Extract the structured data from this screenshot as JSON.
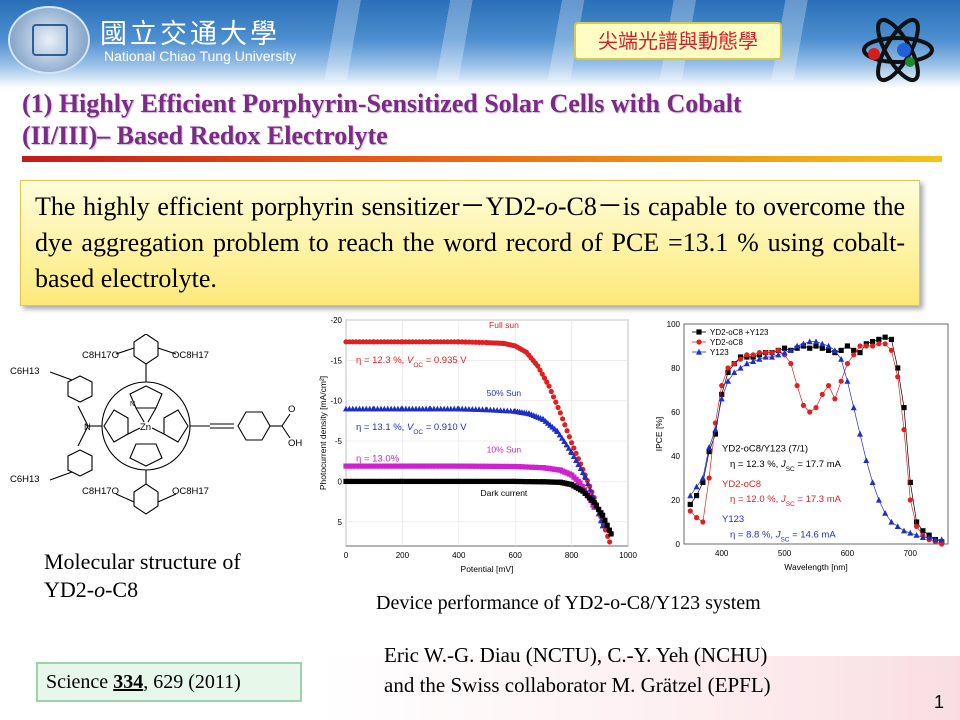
{
  "header": {
    "university_cn": "國立交通大學",
    "university_en": "National Chiao Tung University",
    "badge": "尖端光譜與動態學"
  },
  "title": {
    "line1": "(1) Highly Efficient Porphyrin-Sensitized Solar Cells with Cobalt",
    "line2": "(II/III)– Based Redox Electrolyte"
  },
  "callout": {
    "part1": "The highly efficient porphyrin sensitizer",
    "dash": "－",
    "dye_name_a": "YD2-",
    "dye_name_italic": "o",
    "dye_name_b": "-C8",
    "part2": "is capable to overcome the dye aggregation problem to reach the word record of PCE =13.1 % using cobalt-based electrolyte."
  },
  "molecule": {
    "caption_line1": "Molecular structure of",
    "caption_a": "YD2-",
    "caption_italic": "o",
    "caption_b": "-C8",
    "labels": {
      "c6h13_top": "C6H13",
      "c6h13_bottom": "C6H13",
      "oc8_tl": "C8H17O",
      "oc8_tr": "OC8H17",
      "oc8_bl": "C8H17O",
      "oc8_br": "OC8H17",
      "n": "N",
      "zn": "Zn",
      "ring_n": "N",
      "o": "O",
      "oh": "OH"
    }
  },
  "device_caption": "Device performance of YD2-o-C8/Y123 system",
  "science": {
    "journal": "Science",
    "volume": "334",
    "rest": ", 629 (2011)"
  },
  "authors": {
    "line1": "Eric W.-G. Diau (NCTU),  C.-Y. Yeh (NCHU)",
    "line2": "and the Swiss collaborator M. Grätzel (EPFL)"
  },
  "page_number": "1",
  "chart_data": [
    {
      "type": "scatter",
      "xlabel": "Potential [mV]",
      "ylabel": "Photocurrent density [mA/cm²]",
      "xlim": [
        0,
        1000
      ],
      "ylim": [
        -20,
        8
      ],
      "y_inverted": true,
      "x_ticks": [
        0,
        200,
        400,
        600,
        800,
        1000
      ],
      "y_ticks": [
        -20,
        -15,
        -10,
        -5,
        0,
        5
      ],
      "grid": true,
      "series": [
        {
          "name": "Full sun",
          "color": "#e02020",
          "marker": "circle",
          "jsc": -17.2,
          "voc": 935,
          "x": [
            0,
            100,
            200,
            300,
            400,
            500,
            560,
            600,
            640,
            680,
            720,
            760,
            800,
            840,
            880,
            920,
            935
          ],
          "y": [
            -17.3,
            -17.3,
            -17.3,
            -17.3,
            -17.3,
            -17.2,
            -17.1,
            -16.8,
            -16.0,
            -14.3,
            -11.8,
            -8.5,
            -4.8,
            -1.5,
            2.0,
            6.0,
            7.5
          ]
        },
        {
          "name": "50% Sun",
          "color": "#1e2fc8",
          "marker": "triangle",
          "jsc": -8.8,
          "voc": 910,
          "x": [
            0,
            100,
            200,
            300,
            400,
            500,
            600,
            650,
            700,
            750,
            800,
            850,
            880,
            910
          ],
          "y": [
            -9.0,
            -9.0,
            -9.0,
            -9.0,
            -9.0,
            -8.9,
            -8.7,
            -8.4,
            -7.7,
            -6.2,
            -3.6,
            -0.5,
            2.3,
            5.5
          ]
        },
        {
          "name": "10% Sun",
          "color": "#d020d0",
          "marker": "square",
          "jsc": -1.9,
          "voc": 860,
          "x": [
            0,
            200,
            400,
            600,
            700,
            760,
            800,
            830,
            860,
            880
          ],
          "y": [
            -1.9,
            -1.9,
            -1.9,
            -1.85,
            -1.7,
            -1.4,
            -0.8,
            0.2,
            1.8,
            3.2
          ]
        },
        {
          "name": "Dark current",
          "color": "#000000",
          "marker": "square",
          "x": [
            0,
            200,
            400,
            600,
            700,
            760,
            800,
            840,
            880,
            910,
            940
          ],
          "y": [
            0,
            0,
            0,
            0,
            0.05,
            0.1,
            0.4,
            1.2,
            2.6,
            4.2,
            6.5
          ]
        }
      ],
      "annotations": [
        {
          "label_a": "η = 12.3 %, ",
          "label_v": "V",
          "label_sub": "OC",
          "label_b": " = 0.935 V",
          "color": "#e02020"
        },
        {
          "label_a": "η = 13.1 %, ",
          "label_v": "V",
          "label_sub": "OC",
          "label_b": " = 0.910 V",
          "color": "#1e2fc8"
        },
        {
          "label_a": "η = 13.0%",
          "color": "#d020d0"
        }
      ]
    },
    {
      "type": "scatter",
      "xlabel": "Wavelength [nm]",
      "ylabel": "IPCE [%]",
      "xlim": [
        340,
        760
      ],
      "ylim": [
        0,
        100
      ],
      "x_ticks": [
        400,
        500,
        600,
        700
      ],
      "y_ticks": [
        0,
        20,
        40,
        60,
        80,
        100
      ],
      "legend": "top-left",
      "series": [
        {
          "name": "YD2-oC8 +Y123",
          "color": "#000000",
          "marker": "square",
          "x": [
            350,
            360,
            370,
            380,
            390,
            400,
            410,
            420,
            430,
            440,
            450,
            460,
            470,
            480,
            490,
            500,
            510,
            520,
            530,
            540,
            550,
            560,
            570,
            580,
            590,
            600,
            610,
            620,
            630,
            640,
            650,
            660,
            670,
            680,
            690,
            700,
            710,
            720,
            730,
            740,
            750
          ],
          "y": [
            18,
            22,
            28,
            42,
            50,
            68,
            78,
            82,
            85,
            85,
            85,
            86,
            87,
            87,
            88,
            89,
            88,
            89,
            90,
            89,
            90,
            89,
            88,
            87,
            88,
            90,
            88,
            87,
            91,
            92,
            93,
            94,
            93,
            80,
            62,
            28,
            10,
            6,
            4,
            2,
            1
          ]
        },
        {
          "name": "YD2-oC8",
          "color": "#e02020",
          "marker": "circle",
          "x": [
            350,
            360,
            370,
            380,
            390,
            400,
            410,
            420,
            430,
            440,
            450,
            460,
            470,
            480,
            490,
            500,
            510,
            520,
            530,
            540,
            550,
            560,
            570,
            580,
            590,
            600,
            610,
            620,
            630,
            640,
            650,
            660,
            670,
            680,
            690,
            700,
            710,
            720,
            730,
            740,
            750
          ],
          "y": [
            15,
            12,
            10,
            30,
            55,
            72,
            80,
            82,
            84,
            86,
            86,
            87,
            87,
            87,
            88,
            86,
            82,
            72,
            63,
            60,
            62,
            68,
            72,
            66,
            74,
            82,
            86,
            90,
            90,
            90,
            91,
            91,
            88,
            76,
            52,
            20,
            8,
            4,
            2,
            1,
            0
          ]
        },
        {
          "name": "Y123",
          "color": "#1e2fc8",
          "marker": "triangle",
          "x": [
            350,
            360,
            370,
            380,
            390,
            400,
            410,
            420,
            430,
            440,
            450,
            460,
            470,
            480,
            490,
            500,
            510,
            520,
            530,
            540,
            550,
            560,
            570,
            580,
            590,
            600,
            610,
            620,
            630,
            640,
            650,
            660,
            670,
            680,
            690,
            700,
            710,
            720,
            730,
            740,
            750
          ],
          "y": [
            22,
            26,
            30,
            44,
            52,
            66,
            74,
            78,
            80,
            82,
            83,
            84,
            85,
            85,
            86,
            87,
            88,
            90,
            91,
            92,
            92,
            91,
            90,
            88,
            84,
            74,
            62,
            50,
            38,
            28,
            20,
            14,
            10,
            8,
            6,
            5,
            4,
            3,
            3,
            2,
            2
          ]
        }
      ],
      "annotations": [
        {
          "label": "YD2-oC8/Y123  (7/1)",
          "color": "#000000"
        },
        {
          "label_a": "η = 12.3 %, ",
          "label_j": "J",
          "label_sub": "SC",
          "label_b": " = 17.7 mA",
          "color": "#000000"
        },
        {
          "label": "YD2-oC8",
          "color": "#e02020"
        },
        {
          "label_a": "η = 12.0 %, ",
          "label_j": "J",
          "label_sub": "SC",
          "label_b": " = 17.3 mA",
          "color": "#e02020"
        },
        {
          "label": "Y123",
          "color": "#1e2fc8"
        },
        {
          "label_a": "η = 8.8 %, ",
          "label_j": "J",
          "label_sub": "SC",
          "label_b": " = 14.6 mA",
          "color": "#1e2fc8"
        }
      ]
    }
  ]
}
